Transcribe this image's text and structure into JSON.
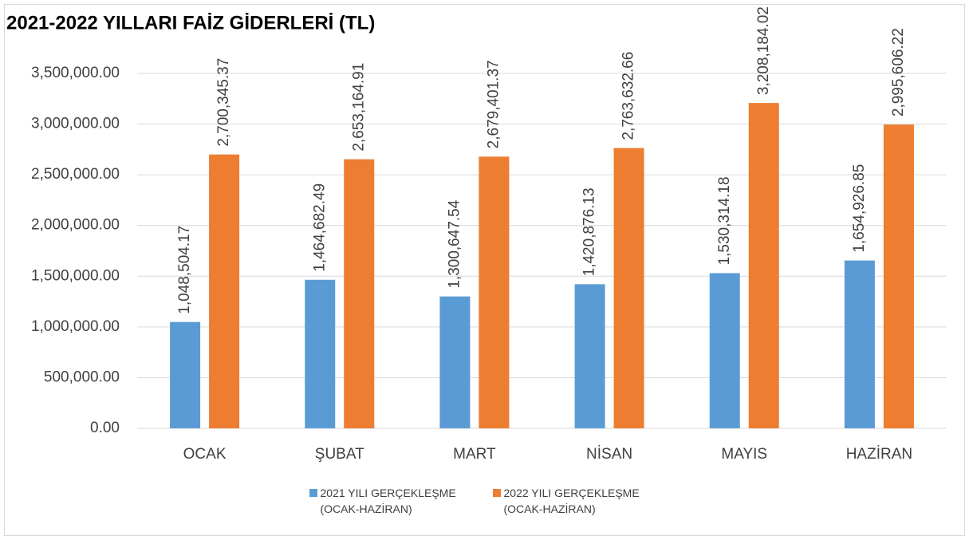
{
  "chart_data": {
    "type": "bar",
    "title": "2021-2022 YILLARI FAİZ GİDERLERİ (TL)",
    "categories": [
      "OCAK",
      "ŞUBAT",
      "MART",
      "NİSAN",
      "MAYIS",
      "HAZİRAN"
    ],
    "series": [
      {
        "name": "2021 YILI GERÇEKLEŞME (OCAK-HAZİRAN)",
        "color": "#5b9bd5",
        "values": [
          1048504.17,
          1464682.49,
          1300647.54,
          1420876.13,
          1530314.18,
          1654926.85
        ],
        "value_labels": [
          "1,048,504.17",
          "1,464,682.49",
          "1,300,647.54",
          "1,420,876.13",
          "1,530,314.18",
          "1,654,926.85"
        ]
      },
      {
        "name": "2022 YILI GERÇEKLEŞME (OCAK-HAZİRAN)",
        "color": "#ed7d31",
        "values": [
          2700345.37,
          2653164.91,
          2679401.37,
          2763632.66,
          3208184.02,
          2995606.22
        ],
        "value_labels": [
          "2,700,345.37",
          "2,653,164.91",
          "2,679,401.37",
          "2,763,632.66",
          "3,208,184.02",
          "2,995,606.22"
        ]
      }
    ],
    "ylim": [
      0,
      3500000
    ],
    "yticks": [
      {
        "value": 0,
        "label": "0.00"
      },
      {
        "value": 500000,
        "label": "500,000.00"
      },
      {
        "value": 1000000,
        "label": "1,000,000.00"
      },
      {
        "value": 1500000,
        "label": "1,500,000.00"
      },
      {
        "value": 2000000,
        "label": "2,000,000.00"
      },
      {
        "value": 2500000,
        "label": "2,500,000.00"
      },
      {
        "value": 3000000,
        "label": "3,000,000.00"
      },
      {
        "value": 3500000,
        "label": "3,500,000.00"
      }
    ],
    "grid": true
  }
}
